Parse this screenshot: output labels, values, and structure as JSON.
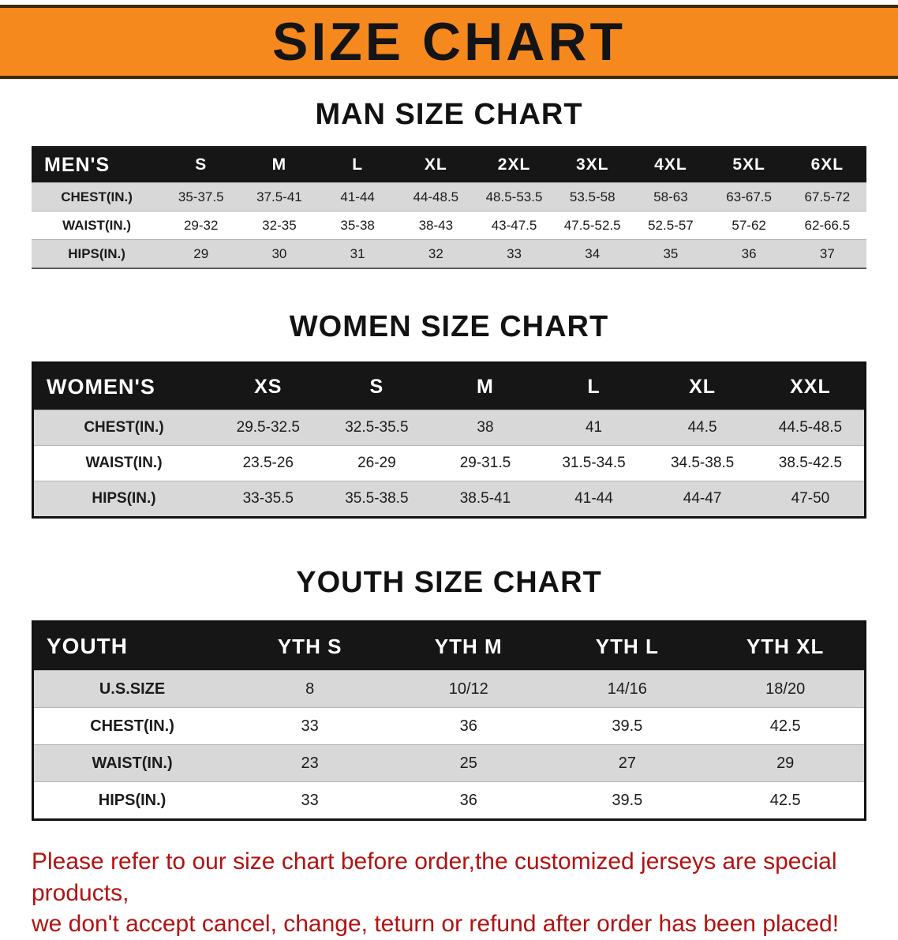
{
  "banner": {
    "title": "SIZE CHART"
  },
  "sections": {
    "men": {
      "heading": "MAN SIZE CHART"
    },
    "women": {
      "heading": "WOMEN SIZE CHART"
    },
    "youth": {
      "heading": "YOUTH SIZE CHART"
    }
  },
  "tables": {
    "men": {
      "header": [
        "MEN'S",
        "S",
        "M",
        "L",
        "XL",
        "2XL",
        "3XL",
        "4XL",
        "5XL",
        "6XL"
      ],
      "rows": [
        [
          "CHEST(IN.)",
          "35-37.5",
          "37.5-41",
          "41-44",
          "44-48.5",
          "48.5-53.5",
          "53.5-58",
          "58-63",
          "63-67.5",
          "67.5-72"
        ],
        [
          "WAIST(IN.)",
          "29-32",
          "32-35",
          "35-38",
          "38-43",
          "43-47.5",
          "47.5-52.5",
          "52.5-57",
          "57-62",
          "62-66.5"
        ],
        [
          "HIPS(IN.)",
          "29",
          "30",
          "31",
          "32",
          "33",
          "34",
          "35",
          "36",
          "37"
        ]
      ]
    },
    "women": {
      "header": [
        "WOMEN'S",
        "XS",
        "S",
        "M",
        "L",
        "XL",
        "XXL"
      ],
      "rows": [
        [
          "CHEST(IN.)",
          "29.5-32.5",
          "32.5-35.5",
          "38",
          "41",
          "44.5",
          "44.5-48.5"
        ],
        [
          "WAIST(IN.)",
          "23.5-26",
          "26-29",
          "29-31.5",
          "31.5-34.5",
          "34.5-38.5",
          "38.5-42.5"
        ],
        [
          "HIPS(IN.)",
          "33-35.5",
          "35.5-38.5",
          "38.5-41",
          "41-44",
          "44-47",
          "47-50"
        ]
      ]
    },
    "youth": {
      "header": [
        "YOUTH",
        "YTH S",
        "YTH M",
        "YTH L",
        "YTH XL"
      ],
      "rows": [
        [
          "U.S.SIZE",
          "8",
          "10/12",
          "14/16",
          "18/20"
        ],
        [
          "CHEST(IN.)",
          "33",
          "36",
          "39.5",
          "42.5"
        ],
        [
          "WAIST(IN.)",
          "23",
          "25",
          "27",
          "29"
        ],
        [
          "HIPS(IN.)",
          "33",
          "36",
          "39.5",
          "42.5"
        ]
      ]
    }
  },
  "footer": {
    "line1": "Please refer to our size chart before order,the customized jerseys are special products,",
    "line2": "we don't accept cancel, change, teturn or refund after order has been placed!"
  },
  "colors": {
    "banner_orange": "#f6891e",
    "banner_border": "#3f2a05",
    "header_black": "#161616",
    "row_gray": "#d8d8d8",
    "note_red": "#b21212",
    "text_black": "#121212"
  }
}
